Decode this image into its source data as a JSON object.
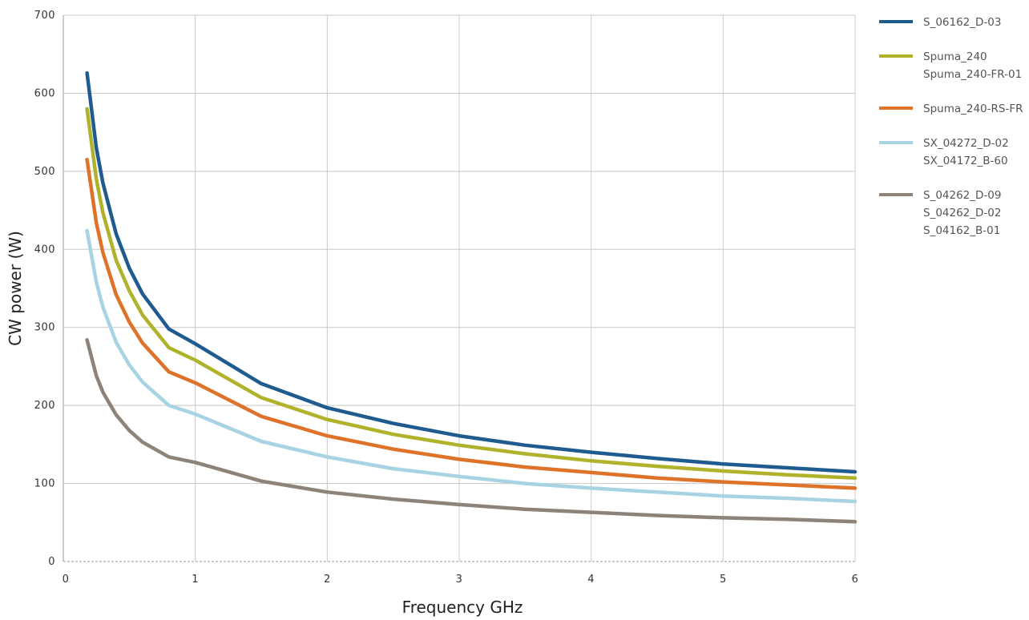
{
  "chart_data": {
    "type": "line",
    "title": "",
    "xlabel": "Frequency GHz",
    "ylabel": "CW power (W)",
    "xlim": [
      0,
      6
    ],
    "ylim": [
      0,
      700
    ],
    "x_ticks": [
      "0",
      "1",
      "2",
      "3",
      "4",
      "5",
      "6"
    ],
    "y_ticks": [
      "0",
      "100",
      "200",
      "300",
      "400",
      "500",
      "600",
      "700"
    ],
    "grid": true,
    "legend_position": "right",
    "x": [
      0.18,
      0.25,
      0.3,
      0.4,
      0.5,
      0.6,
      0.8,
      1.0,
      1.5,
      2.0,
      2.5,
      3.0,
      3.5,
      4.0,
      4.5,
      5.0,
      5.5,
      6.0
    ],
    "series": [
      {
        "name": "S_06162_D-03",
        "color": "#1f5b8f",
        "legend_lines": [
          "S_06162_D-03"
        ],
        "values": [
          626,
          530,
          485,
          420,
          376,
          343,
          298,
          279,
          228,
          197,
          177,
          161,
          149,
          140,
          132,
          125,
          120,
          115
        ]
      },
      {
        "name": "Spuma_240 Spuma_240-FR-01",
        "color": "#b0b22c",
        "legend_lines": [
          "Spuma_240",
          "Spuma_240-FR-01"
        ],
        "values": [
          580,
          490,
          447,
          386,
          347,
          316,
          274,
          258,
          210,
          182,
          163,
          149,
          138,
          129,
          122,
          116,
          111,
          107
        ]
      },
      {
        "name": "Spuma_240-RS-FR",
        "color": "#de7229",
        "legend_lines": [
          "Spuma_240-RS-FR"
        ],
        "values": [
          515,
          434,
          396,
          342,
          307,
          280,
          243,
          229,
          186,
          161,
          144,
          131,
          121,
          114,
          107,
          102,
          98,
          94
        ]
      },
      {
        "name": "SX_04272_D-02 SX_04172_B-60",
        "color": "#a8d3e2",
        "legend_lines": [
          "SX_04272_D-02",
          "SX_04172_B-60"
        ],
        "values": [
          424,
          358,
          326,
          281,
          252,
          230,
          200,
          189,
          154,
          134,
          119,
          109,
          100,
          94,
          89,
          84,
          81,
          77
        ]
      },
      {
        "name": "S_04262_D-09 S_04262_D-02 S_04162_B-01",
        "color": "#8d8378",
        "legend_lines": [
          "S_04262_D-09",
          "S_04262_D-02",
          "S_04162_B-01"
        ],
        "values": [
          284,
          238,
          217,
          188,
          168,
          153,
          134,
          127,
          103,
          89,
          80,
          73,
          67,
          63,
          59,
          56,
          54,
          51
        ]
      }
    ]
  }
}
